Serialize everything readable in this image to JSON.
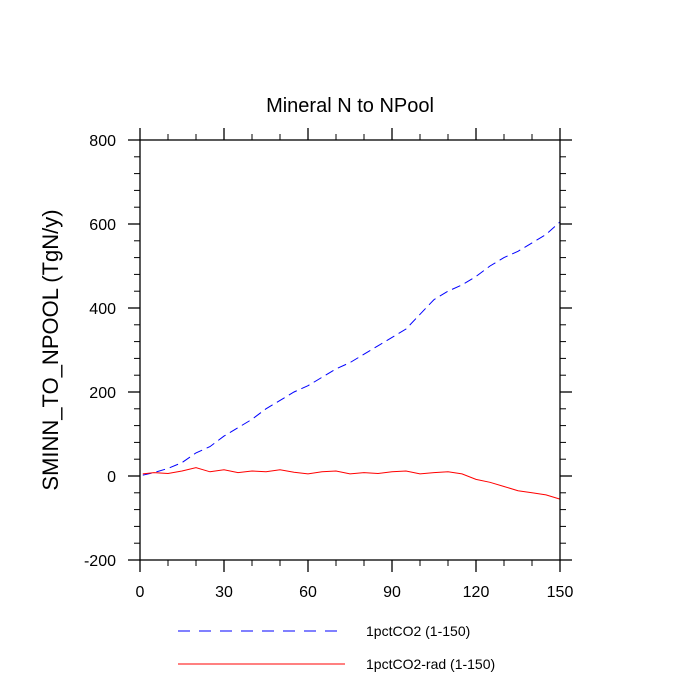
{
  "chart_data": {
    "type": "line",
    "title": "Mineral N to NPool",
    "xlabel": "",
    "ylabel": "SMINN_TO_NPOOL  (TgN/y)",
    "xlim": [
      0,
      150
    ],
    "ylim": [
      -200,
      800
    ],
    "x_ticks": [
      0,
      30,
      60,
      90,
      120,
      150
    ],
    "y_ticks": [
      -200,
      0,
      200,
      400,
      600,
      800
    ],
    "x_tick_labels": [
      "0",
      "30",
      "60",
      "90",
      "120",
      "150"
    ],
    "y_tick_labels": [
      "-200",
      "0",
      "200",
      "400",
      "600",
      "800"
    ],
    "grid": false,
    "legend_position": "bottom",
    "series": [
      {
        "name": "1pctCO2 (1-150)",
        "color": "#0000ff",
        "dash": "dashed",
        "x": [
          1,
          5,
          10,
          15,
          20,
          25,
          30,
          35,
          40,
          45,
          50,
          55,
          60,
          65,
          70,
          75,
          80,
          85,
          90,
          95,
          100,
          105,
          110,
          115,
          120,
          125,
          130,
          135,
          140,
          145,
          150
        ],
        "y": [
          2,
          8,
          18,
          32,
          55,
          70,
          95,
          115,
          135,
          160,
          180,
          200,
          215,
          235,
          255,
          270,
          290,
          310,
          330,
          350,
          385,
          420,
          440,
          455,
          475,
          500,
          520,
          535,
          555,
          575,
          605
        ]
      },
      {
        "name": "1pctCO2-rad (1-150)",
        "color": "#ff0000",
        "dash": "solid",
        "x": [
          1,
          5,
          10,
          15,
          20,
          25,
          30,
          35,
          40,
          45,
          50,
          55,
          60,
          65,
          70,
          75,
          80,
          85,
          90,
          95,
          100,
          105,
          110,
          115,
          120,
          125,
          130,
          135,
          140,
          145,
          150
        ],
        "y": [
          5,
          8,
          6,
          12,
          20,
          10,
          15,
          8,
          12,
          10,
          15,
          9,
          5,
          10,
          12,
          5,
          8,
          6,
          10,
          12,
          5,
          8,
          10,
          5,
          -8,
          -15,
          -25,
          -35,
          -40,
          -45,
          -55
        ]
      }
    ]
  }
}
